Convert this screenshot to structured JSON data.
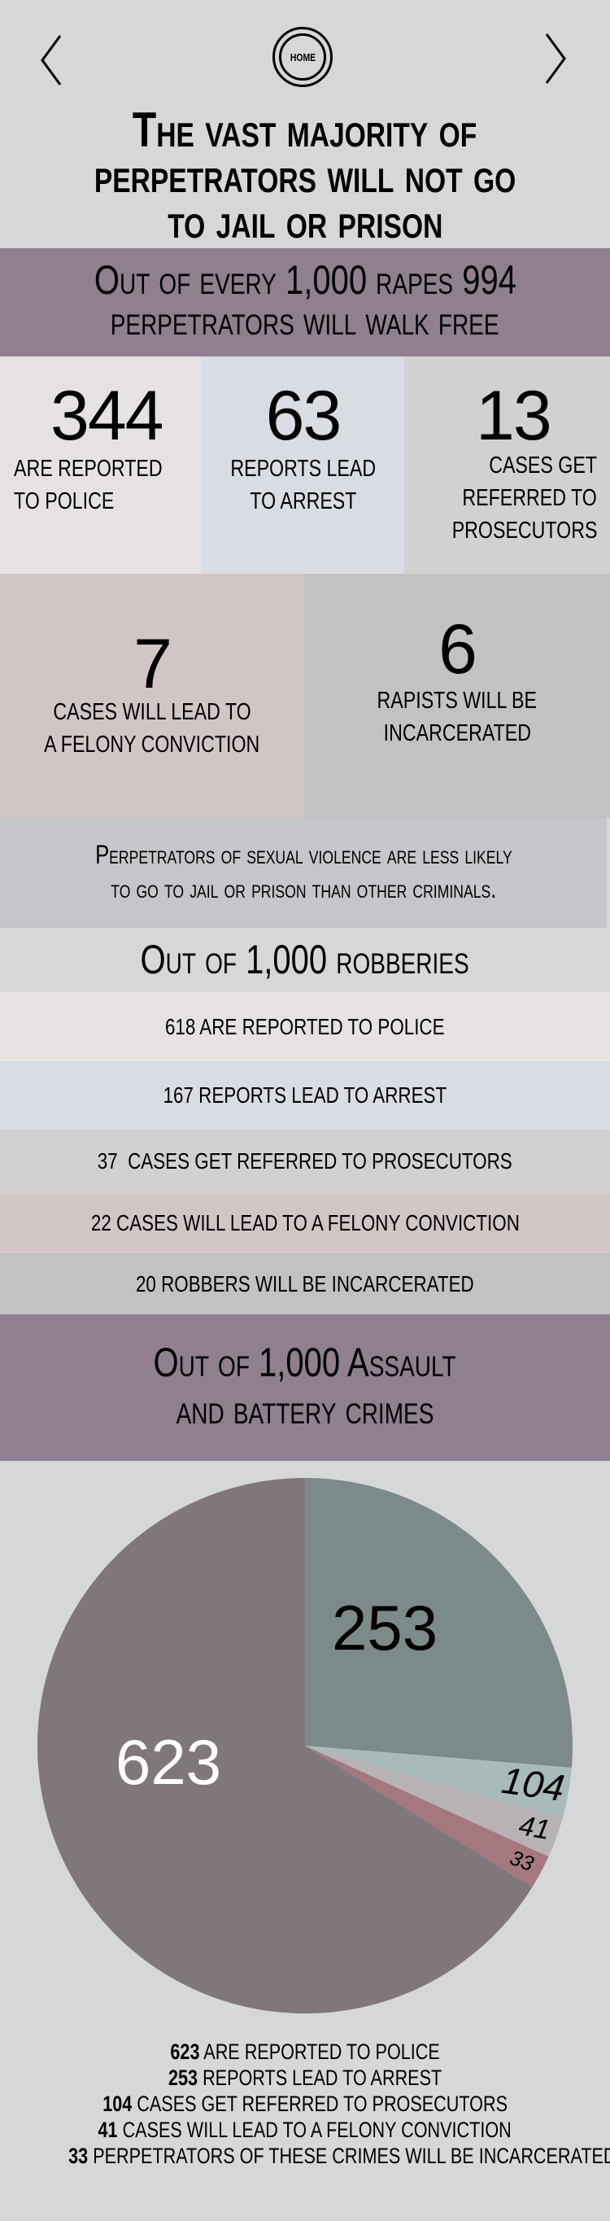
{
  "nav": {
    "prev_icon": "chevron-left-icon",
    "next_icon": "chevron-right-icon",
    "home_label": "HOME"
  },
  "title": {
    "lines": [
      "The vast majority of",
      "perpetrators will not go",
      "to jail or prison"
    ]
  },
  "rape_header": {
    "lines": [
      "Out of every 1,000 rapes 994",
      "perpetrators will walk free"
    ]
  },
  "rape_stats": [
    {
      "value": "344",
      "label_lines": [
        "are reported",
        "to police"
      ],
      "color": "#e6e2e3"
    },
    {
      "value": "63",
      "label_lines": [
        "reports lead",
        "to arrest"
      ],
      "color": "#dadce4"
    },
    {
      "value": "13",
      "label_lines": [
        "cases get",
        "referred to",
        "prosecutors"
      ],
      "color": "#d1d1cf"
    },
    {
      "value": "7",
      "label_lines": [
        "cases will lead to",
        "a felony conviction"
      ],
      "color": "#d2c5c6"
    },
    {
      "value": "6",
      "label_lines": [
        "rapists will be",
        "incarcerated"
      ],
      "color": "#c2c1c3"
    }
  ],
  "comparison_note": {
    "lines": [
      "Perpetrators of sexual violence are less likely",
      "to go to jail or prison than other criminals."
    ]
  },
  "robbery": {
    "heading": "Out of 1,000 robberies",
    "rows": [
      {
        "text": "618 are reported to police",
        "color": "#e6e2e3"
      },
      {
        "text": "167 reports lead to arrest",
        "color": "#dadce4"
      },
      {
        "text": "37  cases get referred to prosecutors",
        "color": "#d1d1cf"
      },
      {
        "text": "22 cases will lead to a felony conviction",
        "color": "#d2c5c6"
      },
      {
        "text": "20 robbers will be incarcerated",
        "color": "#c2c1c3"
      }
    ]
  },
  "assault_header": {
    "lines": [
      "Out of 1,000 Assault",
      "and battery crimes"
    ]
  },
  "chart_data": {
    "type": "pie",
    "slices": [
      {
        "label": "253",
        "value": 253,
        "color": "#7c8a8a"
      },
      {
        "label": "104",
        "value": 104,
        "color": "#a8bbba"
      },
      {
        "label": "41",
        "value": 41,
        "color": "#b7b2b6"
      },
      {
        "label": "33",
        "value": 33,
        "color": "#a57880"
      },
      {
        "label": "623",
        "value": 623,
        "color": "#80777c"
      }
    ],
    "legend": [
      {
        "value": "623",
        "text": "are reported to police"
      },
      {
        "value": "253",
        "text": "reports lead to arrest"
      },
      {
        "value": "104",
        "text": "cases get referred to prosecutors"
      },
      {
        "value": "41",
        "text": "cases will lead to a felony conviction"
      },
      {
        "value": "33",
        "text": "perpetrators of these crimes will be incarcerated"
      }
    ]
  },
  "colors": {
    "background": "#d6d7d9",
    "band": "#8f7f8f",
    "note_box": "#c5c6ca"
  }
}
